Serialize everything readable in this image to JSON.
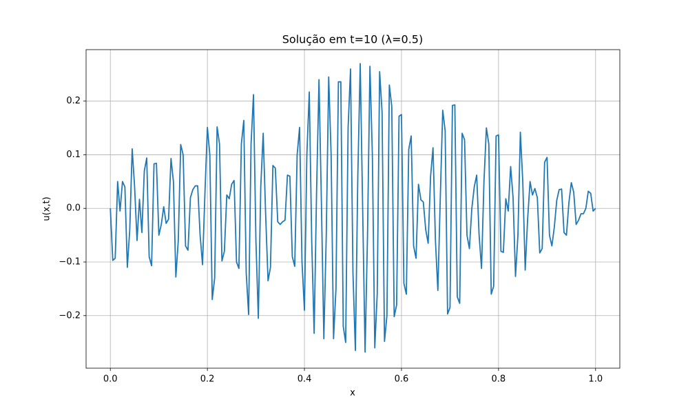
{
  "chart_data": {
    "type": "line",
    "title": "Solução em t=10 (λ=0.5)",
    "x_label": "x",
    "y_label": "u(x,t)",
    "grid": true,
    "color": "#1f77b4",
    "xlim": [
      -0.05,
      1.05
    ],
    "ylim": [
      -0.298,
      0.296
    ],
    "xticks": [
      {
        "value": 0,
        "label": "0.0"
      },
      {
        "value": 0.2,
        "label": "0.2"
      },
      {
        "value": 0.4,
        "label": "0.4"
      },
      {
        "value": 0.6,
        "label": "0.6"
      },
      {
        "value": 0.8,
        "label": "0.8"
      },
      {
        "value": 1,
        "label": "1.0"
      }
    ],
    "yticks": [
      {
        "value": -0.2,
        "label": "−0.2"
      },
      {
        "value": -0.1,
        "label": "−0.1"
      },
      {
        "value": 0,
        "label": "0.0"
      },
      {
        "value": 0.1,
        "label": "0.1"
      },
      {
        "value": 0.2,
        "label": "0.2"
      }
    ],
    "x": [
      0,
      0.005,
      0.01,
      0.015,
      0.02,
      0.025,
      0.03,
      0.035,
      0.04,
      0.045,
      0.05,
      0.055,
      0.06,
      0.065,
      0.07,
      0.075,
      0.08,
      0.085,
      0.09,
      0.095,
      0.1,
      0.105,
      0.11,
      0.115,
      0.12,
      0.125,
      0.13,
      0.135,
      0.14,
      0.145,
      0.15,
      0.155,
      0.16,
      0.165,
      0.17,
      0.175,
      0.18,
      0.185,
      0.19,
      0.195,
      0.2,
      0.205,
      0.21,
      0.215,
      0.22,
      0.225,
      0.23,
      0.235,
      0.24,
      0.245,
      0.25,
      0.255,
      0.26,
      0.265,
      0.27,
      0.275,
      0.28,
      0.285,
      0.29,
      0.295,
      0.3,
      0.305,
      0.31,
      0.315,
      0.32,
      0.325,
      0.33,
      0.335,
      0.34,
      0.345,
      0.35,
      0.355,
      0.36,
      0.365,
      0.37,
      0.375,
      0.38,
      0.385,
      0.39,
      0.395,
      0.4,
      0.405,
      0.41,
      0.415,
      0.42,
      0.425,
      0.43,
      0.435,
      0.44,
      0.445,
      0.45,
      0.455,
      0.46,
      0.465,
      0.47,
      0.475,
      0.48,
      0.485,
      0.49,
      0.495,
      0.5,
      0.505,
      0.51,
      0.515,
      0.52,
      0.525,
      0.53,
      0.535,
      0.54,
      0.545,
      0.55,
      0.555,
      0.56,
      0.565,
      0.57,
      0.575,
      0.58,
      0.585,
      0.59,
      0.595,
      0.6,
      0.605,
      0.61,
      0.615,
      0.62,
      0.625,
      0.63,
      0.635,
      0.64,
      0.645,
      0.65,
      0.655,
      0.66,
      0.665,
      0.67,
      0.675,
      0.68,
      0.685,
      0.69,
      0.695,
      0.7,
      0.705,
      0.71,
      0.715,
      0.72,
      0.725,
      0.73,
      0.735,
      0.74,
      0.745,
      0.75,
      0.755,
      0.76,
      0.765,
      0.77,
      0.775,
      0.78,
      0.785,
      0.79,
      0.795,
      0.8,
      0.805,
      0.81,
      0.815,
      0.82,
      0.825,
      0.83,
      0.835,
      0.84,
      0.845,
      0.85,
      0.855,
      0.86,
      0.865,
      0.87,
      0.875,
      0.88,
      0.885,
      0.89,
      0.895,
      0.9,
      0.905,
      0.91,
      0.915,
      0.92,
      0.925,
      0.93,
      0.935,
      0.94,
      0.945,
      0.95,
      0.955,
      0.96,
      0.965,
      0.97,
      0.975,
      0.98,
      0.985,
      0.99,
      0.995,
      1
    ],
    "values": [
      0,
      -0.097,
      -0.093,
      0.05,
      -0.005,
      0.05,
      0.04,
      -0.11,
      -0.04,
      0.111,
      0.04,
      -0.06,
      0.017,
      -0.045,
      0.07,
      0.094,
      -0.09,
      -0.107,
      0.083,
      0.084,
      -0.05,
      -0.03,
      0.003,
      -0.028,
      -0.02,
      0.093,
      0.05,
      -0.128,
      -0.06,
      0.119,
      0.1,
      -0.07,
      -0.078,
      0.02,
      0.035,
      0.042,
      0.042,
      -0.05,
      -0.105,
      0.03,
      0.151,
      0.1,
      -0.17,
      -0.13,
      0.152,
      0.12,
      -0.098,
      -0.08,
      0.025,
      0.018,
      0.045,
      0.052,
      -0.1,
      -0.112,
      0.12,
      0.164,
      -0.12,
      -0.198,
      0.12,
      0.212,
      -0.06,
      -0.205,
      0.04,
      0.14,
      -0.01,
      -0.135,
      -0.11,
      0.08,
      0.075,
      -0.025,
      -0.03,
      -0.025,
      -0.022,
      0.062,
      0.06,
      -0.09,
      -0.108,
      0.1,
      0.151,
      -0.1,
      -0.19,
      0.1,
      0.217,
      -0.06,
      -0.233,
      0.03,
      0.24,
      0.01,
      -0.243,
      -0.05,
      0.245,
      0.1,
      -0.243,
      -0.15,
      0.236,
      0.236,
      -0.22,
      -0.25,
      0.15,
      0.26,
      -0.12,
      -0.265,
      0.06,
      0.27,
      0,
      -0.268,
      -0.05,
      0.265,
      0.1,
      -0.26,
      -0.16,
      0.255,
      0.18,
      -0.248,
      -0.2,
      0.23,
      0.19,
      -0.202,
      -0.18,
      0.172,
      0.175,
      -0.14,
      -0.16,
      0.11,
      0.135,
      -0.07,
      -0.093,
      0.045,
      0.016,
      0.012,
      -0.04,
      -0.065,
      0.06,
      0.113,
      -0.06,
      -0.153,
      0.02,
      0.183,
      0.145,
      -0.197,
      -0.185,
      0.192,
      0.193,
      -0.165,
      -0.177,
      0.14,
      0.128,
      -0.05,
      -0.075,
      0,
      0.04,
      0.062,
      -0.05,
      -0.112,
      0.05,
      0.15,
      0.12,
      -0.16,
      -0.145,
      0.135,
      0.137,
      -0.08,
      -0.082,
      0.018,
      -0.005,
      0.078,
      0.02,
      -0.127,
      -0.05,
      0.142,
      0.05,
      -0.115,
      -0.02,
      0.05,
      0.025,
      0.037,
      0.02,
      -0.083,
      -0.075,
      0.086,
      0.095,
      -0.05,
      -0.07,
      -0.035,
      0.015,
      0.035,
      0.036,
      -0.045,
      -0.05,
      0.01,
      0.048,
      0.03,
      -0.03,
      -0.022,
      -0.01,
      -0.01,
      0,
      0.032,
      0.028,
      -0.005,
      0
    ]
  }
}
